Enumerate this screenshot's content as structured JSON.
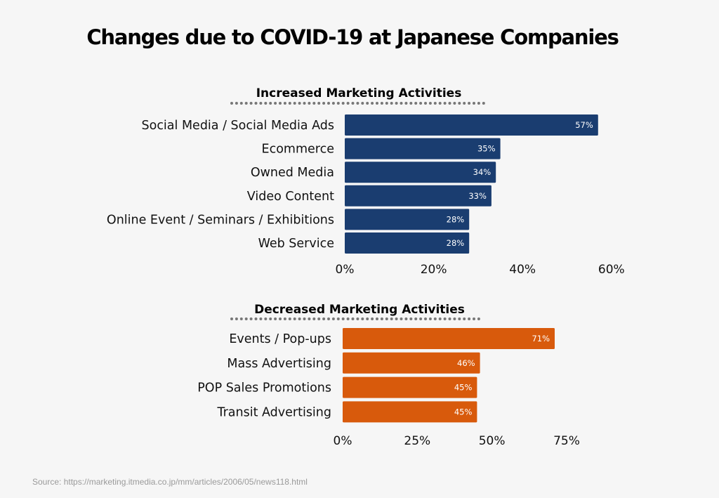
{
  "title": "Changes due to COVID-19 at Japanese Companies",
  "source": "Source: https://marketing.itmedia.co.jp/mm/articles/2006/05/news118.html",
  "chart_data": [
    {
      "type": "bar",
      "orientation": "horizontal",
      "title": "Increased Marketing Activities",
      "categories": [
        "Social Media / Social Media Ads",
        "Ecommerce",
        "Owned Media",
        "Video Content",
        "Online Event / Seminars / Exhibitions",
        "Web Service"
      ],
      "values": [
        57,
        35,
        34,
        33,
        28,
        28
      ],
      "data_labels": [
        "57%",
        "35%",
        "34%",
        "33%",
        "28%",
        "28%"
      ],
      "xlim": [
        0,
        60
      ],
      "ticks": [
        0,
        20,
        40,
        60
      ],
      "tick_labels": [
        "0%",
        "20%",
        "40%",
        "60%"
      ],
      "color": "#1a3d70",
      "grid": false
    },
    {
      "type": "bar",
      "orientation": "horizontal",
      "title": "Decreased Marketing Activities",
      "categories": [
        "Events / Pop-ups",
        "Mass Advertising",
        "POP Sales Promotions",
        "Transit Advertising"
      ],
      "values": [
        71,
        46,
        45,
        45
      ],
      "data_labels": [
        "71%",
        "46%",
        "45%",
        "45%"
      ],
      "xlim": [
        0,
        75
      ],
      "ticks": [
        0,
        25,
        50,
        75
      ],
      "tick_labels": [
        "0%",
        "25%",
        "50%",
        "75%"
      ],
      "color": "#d85a0c",
      "grid": false
    }
  ]
}
